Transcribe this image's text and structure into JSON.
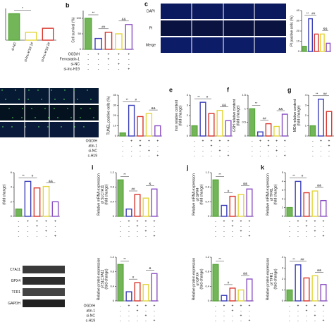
{
  "treatments": {
    "names": [
      "OGD/H",
      "Ferrostatin-1",
      "si-NC",
      "si-lnc-H19"
    ],
    "cropped_names": [
      "OGD/H",
      "atin-1",
      "si-NC",
      "c-H19"
    ],
    "signs": [
      [
        "-",
        "+",
        "+",
        "+",
        "+"
      ],
      [
        "-",
        "-",
        "+",
        "-",
        "-"
      ],
      [
        "-",
        "-",
        "-",
        "+",
        "-"
      ],
      [
        "-",
        "-",
        "-",
        "-",
        "+"
      ]
    ]
  },
  "micrographs": {
    "c": {
      "label": "c",
      "rows": [
        "DAPI",
        "PI",
        "Merge"
      ]
    }
  },
  "blot": {
    "labels": [
      "C7A11",
      "GPX4",
      "TFR1",
      "GAPDH"
    ]
  },
  "chart_data": [
    {
      "type": "bar",
      "ylabel": [],
      "categories": [
        "si-NC",
        "si-lnc-H19 1#",
        "si-lnc-H19 2#"
      ],
      "values": [
        1.0,
        0.3,
        0.45
      ],
      "colors": [
        "#5ba83c",
        "#e3d63c",
        "#d9362c"
      ],
      "ylim": [
        0,
        1.2
      ],
      "yticks": [],
      "annotations": [
        "*"
      ]
    },
    {
      "type": "bar",
      "panel_label": "b",
      "ylabel": [
        "Cell survival (%)"
      ],
      "values": [
        100,
        35,
        55,
        50,
        80
      ],
      "colors": [
        "#5ba83c",
        "#3b3fb8",
        "#d9362c",
        "#e3d63c",
        "#8a4fc4"
      ],
      "ylim": [
        0,
        125
      ],
      "yticks": [
        0,
        50,
        100
      ],
      "annotations": [
        "**",
        "##",
        "&&"
      ],
      "signs": true,
      "names": "full"
    },
    {
      "type": "bar",
      "ylabel": [
        "PI positive cells (%)"
      ],
      "values": [
        5,
        32,
        17,
        17,
        8
      ],
      "colors": [
        "#5ba83c",
        "#3b3fb8",
        "#d9362c",
        "#e3d63c",
        "#8a4fc4"
      ],
      "ylim": [
        0,
        40
      ],
      "yticks": [
        0,
        10,
        20,
        30,
        40
      ],
      "annotations": [
        "**",
        "##",
        "&&"
      ]
    },
    {
      "type": "bar",
      "ylabel": [
        "TUNEL positive cells (%)"
      ],
      "values": [
        3,
        30,
        19,
        22,
        10
      ],
      "colors": [
        "#5ba83c",
        "#3b3fb8",
        "#d9362c",
        "#e3d63c",
        "#8a4fc4"
      ],
      "ylim": [
        0,
        40
      ],
      "yticks": [
        0,
        10,
        20,
        30,
        40
      ],
      "annotations": [
        "**",
        "#",
        "&&"
      ],
      "signs": true,
      "names": "cropped"
    },
    {
      "type": "bar",
      "panel_label": "e",
      "ylabel": [
        "Iron relative content",
        "(fold change)"
      ],
      "values": [
        1,
        3.3,
        2.2,
        2.5,
        1.5
      ],
      "colors": [
        "#5ba83c",
        "#3b3fb8",
        "#d9362c",
        "#e3d63c",
        "#8a4fc4"
      ],
      "ylim": [
        0,
        4
      ],
      "yticks": [
        0,
        1,
        2,
        3,
        4
      ],
      "annotations": [
        "**",
        "#",
        "&&"
      ],
      "signs": true
    },
    {
      "type": "bar",
      "panel_label": "f",
      "ylabel": [
        "GSH relative content",
        "(fold change)"
      ],
      "values": [
        1,
        0.15,
        0.45,
        0.35,
        0.8
      ],
      "colors": [
        "#5ba83c",
        "#3b3fb8",
        "#d9362c",
        "#e3d63c",
        "#8a4fc4"
      ],
      "ylim": [
        0,
        1.5
      ],
      "yticks": [
        0,
        0.5,
        1.0,
        1.5
      ],
      "annotations": [
        "**",
        "##",
        "&&"
      ],
      "signs": true
    },
    {
      "type": "bar",
      "panel_label": "g",
      "ylabel": [
        "MDA relative content",
        "(fold change)"
      ],
      "values": [
        1,
        3.6,
        2.4,
        2.6,
        1.4
      ],
      "colors": [
        "#5ba83c",
        "#3b3fb8",
        "#d9362c",
        "#e3d63c",
        "#8a4fc4"
      ],
      "ylim": [
        0,
        4
      ],
      "yticks": [
        0,
        1,
        2,
        3,
        4
      ],
      "annotations": [
        "**",
        "##"
      ],
      "signs": true
    },
    {
      "type": "bar",
      "ylabel": [
        "(fold change)"
      ],
      "values": [
        1,
        4.8,
        3.9,
        4.1,
        2.0
      ],
      "colors": [
        "#5ba83c",
        "#3b3fb8",
        "#d9362c",
        "#e3d63c",
        "#8a4fc4"
      ],
      "ylim": [
        0,
        6
      ],
      "yticks": [
        0,
        2,
        4,
        6
      ],
      "annotations": [
        "**",
        "#",
        "&&"
      ],
      "signs": true,
      "names": "cropped"
    },
    {
      "type": "bar",
      "panel_label": "i",
      "ylabel": [
        "Relative mRNA expression",
        "of SLC7A11",
        "(fold change)"
      ],
      "values": [
        1.0,
        0.2,
        0.6,
        0.5,
        0.75
      ],
      "colors": [
        "#5ba83c",
        "#3b3fb8",
        "#d9362c",
        "#e3d63c",
        "#8a4fc4"
      ],
      "ylim": [
        0,
        1.2
      ],
      "yticks": [
        0,
        0.4,
        0.8,
        1.2
      ],
      "annotations": [
        "**",
        "##",
        "&"
      ],
      "signs": true
    },
    {
      "type": "bar",
      "panel_label": "j",
      "ylabel": [
        "Relative mRNA expression",
        "of GPX4",
        "(fold change)"
      ],
      "values": [
        1.0,
        0.3,
        0.55,
        0.6,
        0.75
      ],
      "colors": [
        "#5ba83c",
        "#3b3fb8",
        "#d9362c",
        "#e3d63c",
        "#8a4fc4"
      ],
      "ylim": [
        0,
        1.2
      ],
      "yticks": [
        0,
        0.4,
        0.8,
        1.2
      ],
      "annotations": [
        "**",
        "#",
        "&&"
      ],
      "signs": true
    },
    {
      "type": "bar",
      "panel_label": "k",
      "ylabel": [
        "Relative mRNA expression",
        "of TFR1",
        "(fold change)"
      ],
      "values": [
        1,
        4,
        2.7,
        2.9,
        1.8
      ],
      "colors": [
        "#5ba83c",
        "#3b3fb8",
        "#d9362c",
        "#e3d63c",
        "#8a4fc4"
      ],
      "ylim": [
        0,
        5
      ],
      "yticks": [
        0,
        1,
        2,
        3,
        4,
        5
      ],
      "annotations": [
        "**",
        "#",
        "&&"
      ],
      "signs": true
    },
    {
      "type": "bar",
      "ylabel": [
        "Relative protein expression",
        "of SLC7A11",
        "(fold change)"
      ],
      "values": [
        1.0,
        0.25,
        0.5,
        0.45,
        0.75
      ],
      "colors": [
        "#5ba83c",
        "#3b3fb8",
        "#d9362c",
        "#e3d63c",
        "#8a4fc4"
      ],
      "ylim": [
        0,
        1.2
      ],
      "yticks": [
        0,
        0.4,
        0.8,
        1.2
      ],
      "annotations": [
        "**",
        "#",
        "&"
      ],
      "signs": true,
      "names": "cropped"
    },
    {
      "type": "bar",
      "ylabel": [
        "Relative protein expression",
        "of GPX4",
        "(fold change)"
      ],
      "values": [
        1.0,
        0.15,
        0.35,
        0.3,
        0.6
      ],
      "colors": [
        "#5ba83c",
        "#3b3fb8",
        "#d9362c",
        "#e3d63c",
        "#8a4fc4"
      ],
      "ylim": [
        0,
        1.2
      ],
      "yticks": [
        0,
        0.4,
        0.8,
        1.2
      ],
      "annotations": [
        "**",
        "#",
        "&&"
      ],
      "signs": true
    },
    {
      "type": "bar",
      "ylabel": [
        "Relative protein expression",
        "of TFR1",
        "(fold change)"
      ],
      "values": [
        1,
        3.3,
        2.1,
        2.3,
        1.5
      ],
      "colors": [
        "#5ba83c",
        "#3b3fb8",
        "#d9362c",
        "#e3d63c",
        "#8a4fc4"
      ],
      "ylim": [
        0,
        4
      ],
      "yticks": [
        0,
        1,
        2,
        3,
        4
      ],
      "annotations": [
        "**",
        "##",
        "&&"
      ],
      "signs": true
    }
  ]
}
